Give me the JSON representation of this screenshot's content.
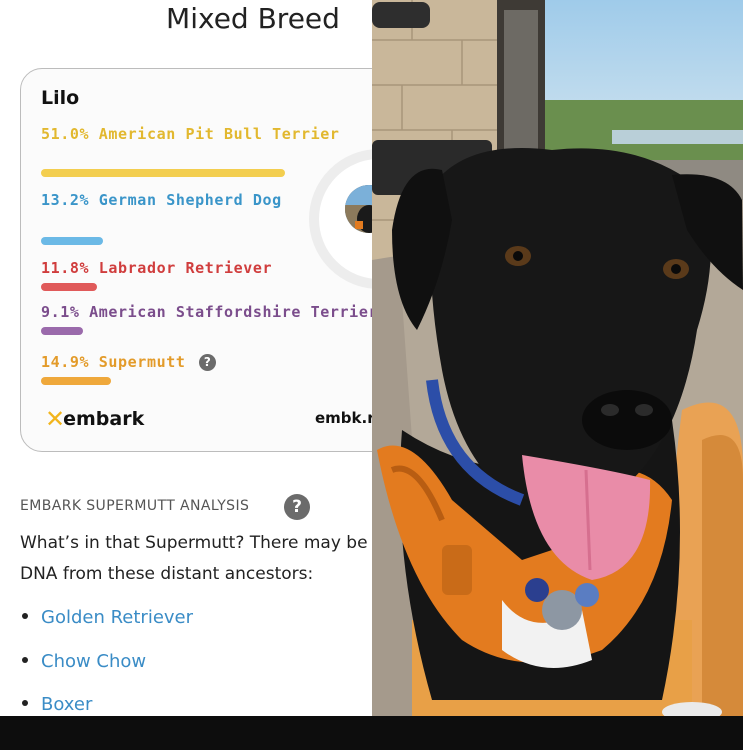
{
  "page": {
    "title": "Mixed Breed"
  },
  "card": {
    "dog_name": "Lilo",
    "breeds": [
      {
        "label": "51.0% American Pit Bull Terrier",
        "percent": 51.0,
        "color": "#e2b82f",
        "bar_color": "#f3ce4f"
      },
      {
        "label": "13.2% German Shepherd Dog",
        "percent": 13.2,
        "color": "#3a95c9",
        "bar_color": "#6bb9e6"
      },
      {
        "label": "11.8% Labrador Retriever",
        "percent": 11.8,
        "color": "#d03d3d",
        "bar_color": "#e05a5a"
      },
      {
        "label": "9.1% American Staffordshire Terrier",
        "percent": 9.1,
        "color": "#7b4d8c",
        "bar_color": "#9a6aab"
      },
      {
        "label": "14.9% Supermutt",
        "percent": 14.9,
        "color": "#e39b2a",
        "bar_color": "#efa83b"
      }
    ],
    "help_icon_glyph": "?",
    "logo_text": "embark",
    "site_text": "embk.r"
  },
  "analysis": {
    "title": "EMBARK SUPERMUTT ANALYSIS",
    "help_glyph": "?",
    "description": "What’s in that Supermutt? There may be small amounts of DNA from these distant ancestors:",
    "ancestors": [
      "Golden Retriever",
      "Chow Chow",
      "Boxer"
    ]
  },
  "colors": {
    "link": "#3a8cc6",
    "text": "#222222",
    "harness": "#e37b1f",
    "dog": "#151515"
  },
  "icons": {
    "logo": "embark-logo-icon",
    "help": "question-circle-icon"
  }
}
